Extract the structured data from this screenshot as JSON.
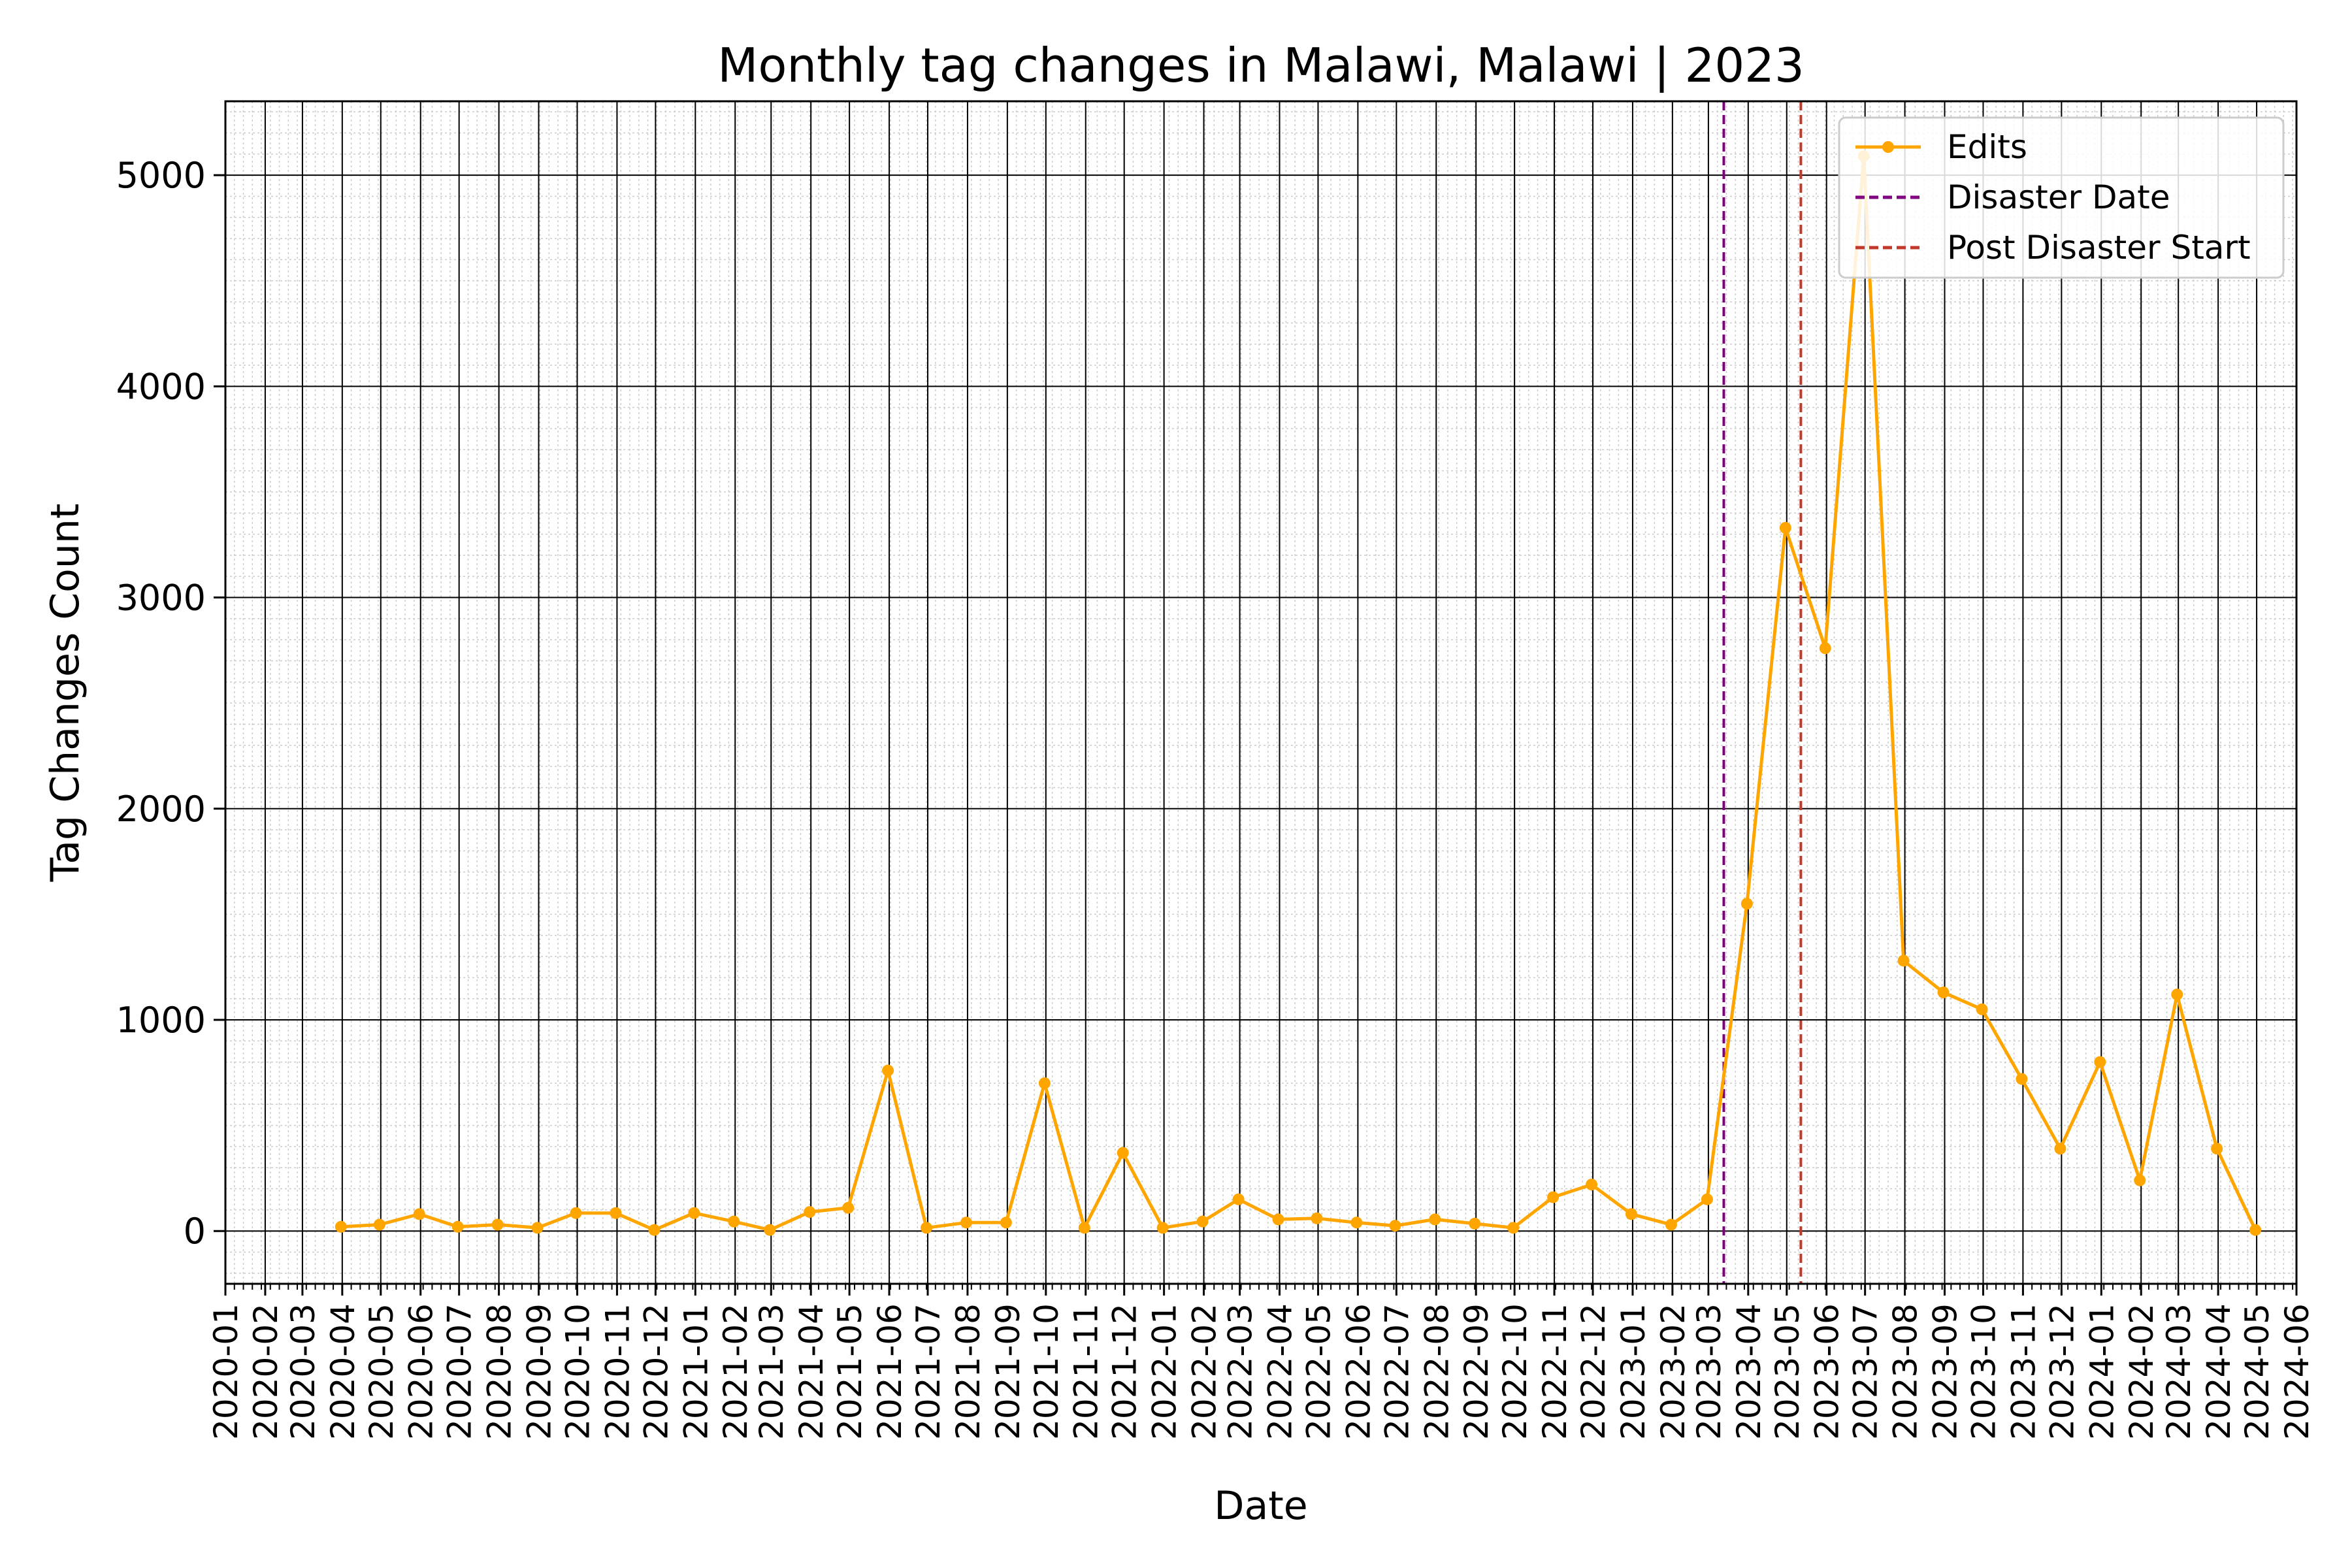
{
  "chart_data": {
    "type": "line",
    "title": "Monthly tag changes in Malawi, Malawi | 2023",
    "xlabel": "Date",
    "ylabel": "Tag Changes Count",
    "xlim": [
      "2020-01-01",
      "2024-06-01"
    ],
    "ylim": [
      -250,
      5350
    ],
    "yticks": [
      0,
      1000,
      2000,
      3000,
      4000,
      5000
    ],
    "xtick_labels": [
      "2020-01",
      "2020-02",
      "2020-03",
      "2020-04",
      "2020-05",
      "2020-06",
      "2020-07",
      "2020-08",
      "2020-09",
      "2020-10",
      "2020-11",
      "2020-12",
      "2021-01",
      "2021-02",
      "2021-03",
      "2021-04",
      "2021-05",
      "2021-06",
      "2021-07",
      "2021-08",
      "2021-09",
      "2021-10",
      "2021-11",
      "2021-12",
      "2022-01",
      "2022-02",
      "2022-03",
      "2022-04",
      "2022-05",
      "2022-06",
      "2022-07",
      "2022-08",
      "2022-09",
      "2022-10",
      "2022-11",
      "2022-12",
      "2023-01",
      "2023-02",
      "2023-03",
      "2023-04",
      "2023-05",
      "2023-06",
      "2023-07",
      "2023-08",
      "2023-09",
      "2023-10",
      "2023-11",
      "2023-12",
      "2024-01",
      "2024-02",
      "2024-03",
      "2024-04",
      "2024-05",
      "2024-06"
    ],
    "grid": true,
    "minor_grid": true,
    "legend_position": "upper right",
    "series": [
      {
        "name": "Edits",
        "color": "#ffa500",
        "marker": "circle",
        "x": [
          "2020-03-31",
          "2020-04-30",
          "2020-05-31",
          "2020-06-30",
          "2020-07-31",
          "2020-08-31",
          "2020-09-30",
          "2020-10-31",
          "2020-11-30",
          "2020-12-31",
          "2021-01-31",
          "2021-02-28",
          "2021-03-31",
          "2021-04-30",
          "2021-05-31",
          "2021-06-30",
          "2021-07-31",
          "2021-08-31",
          "2021-09-30",
          "2021-10-31",
          "2021-11-30",
          "2021-12-31",
          "2022-01-31",
          "2022-02-28",
          "2022-03-31",
          "2022-04-30",
          "2022-05-31",
          "2022-06-30",
          "2022-07-31",
          "2022-08-31",
          "2022-09-30",
          "2022-10-31",
          "2022-11-30",
          "2022-12-31",
          "2023-01-31",
          "2023-02-28",
          "2023-03-31",
          "2023-04-30",
          "2023-05-31",
          "2023-06-30",
          "2023-07-31",
          "2023-08-31",
          "2023-09-30",
          "2023-10-31",
          "2023-11-30",
          "2023-12-31",
          "2024-01-31",
          "2024-02-29",
          "2024-03-31",
          "2024-04-30"
        ],
        "y": [
          20,
          30,
          80,
          20,
          30,
          15,
          85,
          85,
          5,
          85,
          45,
          5,
          90,
          110,
          760,
          15,
          40,
          40,
          700,
          15,
          370,
          15,
          45,
          150,
          55,
          60,
          40,
          25,
          55,
          35,
          15,
          160,
          220,
          80,
          30,
          150,
          1550,
          3330,
          2760,
          5090,
          1280,
          1130,
          1050,
          720,
          390,
          800,
          240,
          1120,
          390,
          5
        ]
      }
    ],
    "vlines": [
      {
        "name": "Disaster Date",
        "x": "2023-03-13",
        "color": "#800080",
        "style": "dashed"
      },
      {
        "name": "Post Disaster Start",
        "x": "2023-05-12",
        "color": "#c0392b",
        "style": "dashed"
      }
    ]
  }
}
